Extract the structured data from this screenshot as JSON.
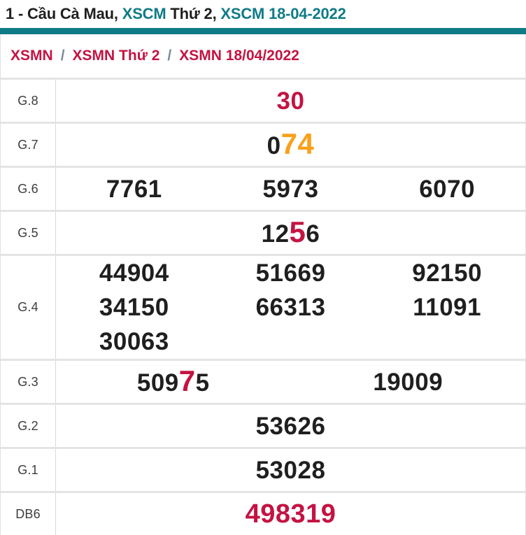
{
  "title": {
    "parts": [
      {
        "text": "1 - Cầu Cà Mau, "
      },
      {
        "text": "XSCM"
      },
      {
        "text": " Thứ 2, "
      },
      {
        "text": "XSCM 18-04-2022"
      }
    ]
  },
  "breadcrumb": {
    "items": [
      "XSMN",
      "XSMN Thứ 2",
      "XSMN 18/04/2022"
    ],
    "separator": "/"
  },
  "table": {
    "rows": [
      {
        "label": "G.8",
        "columns": 1,
        "values": [
          [
            {
              "text": "30",
              "cls": "red"
            }
          ]
        ]
      },
      {
        "label": "G.7",
        "columns": 1,
        "values": [
          [
            {
              "text": "0"
            },
            {
              "text": "74",
              "cls": "orange big"
            }
          ]
        ]
      },
      {
        "label": "G.6",
        "columns": 3,
        "values": [
          [
            {
              "text": "7761"
            }
          ],
          [
            {
              "text": "5973"
            }
          ],
          [
            {
              "text": "6070"
            }
          ]
        ]
      },
      {
        "label": "G.5",
        "columns": 1,
        "values": [
          [
            {
              "text": "12"
            },
            {
              "text": "5",
              "cls": "red big"
            },
            {
              "text": "6"
            }
          ]
        ]
      },
      {
        "label": "G.4",
        "columns": 3,
        "values": [
          [
            {
              "text": "44904"
            }
          ],
          [
            {
              "text": "51669"
            }
          ],
          [
            {
              "text": "92150"
            }
          ],
          [
            {
              "text": "34150"
            }
          ],
          [
            {
              "text": "66313"
            }
          ],
          [
            {
              "text": "11091"
            }
          ],
          [
            {
              "text": "30063"
            }
          ],
          [],
          []
        ]
      },
      {
        "label": "G.3",
        "columns": 2,
        "values": [
          [
            {
              "text": "509"
            },
            {
              "text": "7",
              "cls": "red big"
            },
            {
              "text": "5"
            }
          ],
          [
            {
              "text": "19009"
            }
          ]
        ]
      },
      {
        "label": "G.2",
        "columns": 1,
        "values": [
          [
            {
              "text": "53626"
            }
          ]
        ]
      },
      {
        "label": "G.1",
        "columns": 1,
        "values": [
          [
            {
              "text": "53028"
            }
          ]
        ]
      },
      {
        "label": "DB6",
        "columns": 1,
        "big": true,
        "values": [
          [
            {
              "text": "498319",
              "cls": "red"
            }
          ]
        ]
      }
    ]
  },
  "colors": {
    "accent_teal": "#0f7b86",
    "accent_red": "#c41342",
    "accent_orange": "#f9a01b",
    "border_gray": "#e4e4e4"
  }
}
